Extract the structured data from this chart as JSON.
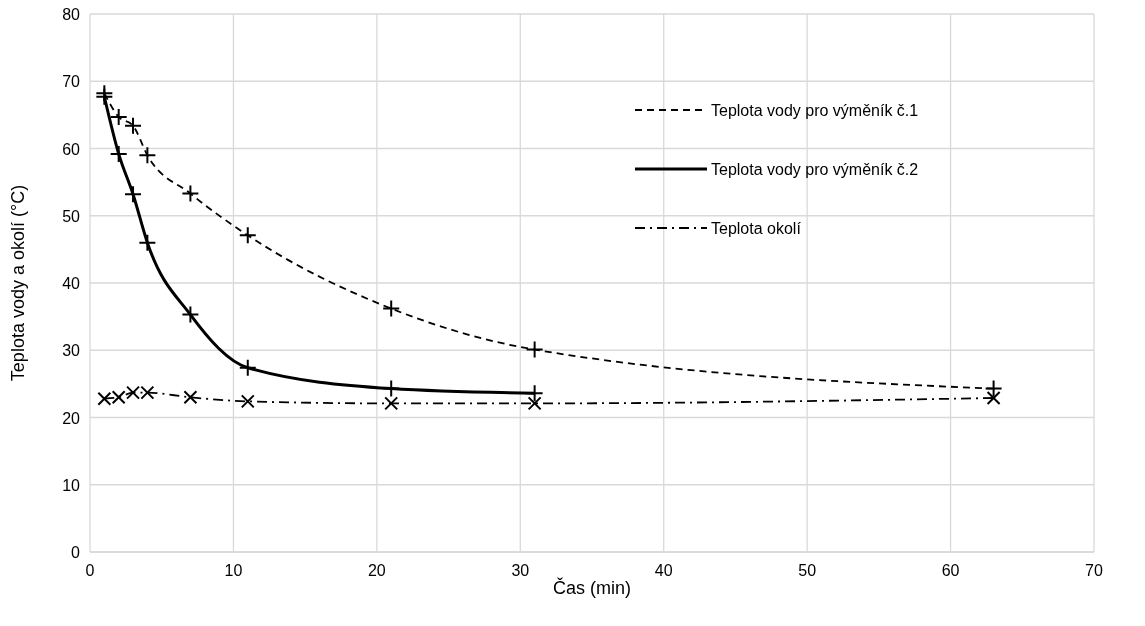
{
  "chart_data": {
    "type": "line",
    "xlabel": "Čas (min)",
    "ylabel": "Teplota vody a okolí (°C)",
    "xlim": [
      0,
      70
    ],
    "xticks": [
      0,
      10,
      20,
      30,
      40,
      50,
      60,
      70
    ],
    "ylim": [
      0,
      80
    ],
    "yticks": [
      0,
      10,
      20,
      30,
      40,
      50,
      60,
      70,
      80
    ],
    "grid": true,
    "legend": "right",
    "series": [
      {
        "name": "Teplota vody pro výměník č.1",
        "color": "#000000",
        "line_style": "dashed",
        "marker": "cross",
        "x": [
          1,
          2,
          3,
          4,
          7,
          11,
          21,
          31,
          63
        ],
        "values": [
          68.2,
          64.7,
          63.4,
          59.0,
          53.3,
          47.1,
          36.2,
          30.1,
          24.3
        ]
      },
      {
        "name": "Teplota vody pro výměník č.2",
        "color": "#000000",
        "line_style": "solid",
        "marker": "cross",
        "x": [
          1,
          2,
          3,
          4,
          7,
          11,
          21,
          31
        ],
        "values": [
          67.7,
          59.2,
          53.2,
          46.0,
          35.3,
          27.4,
          24.3,
          23.6
        ]
      },
      {
        "name": "Teplota okolí",
        "color": "#000000",
        "line_style": "dashdot",
        "marker": "x",
        "x": [
          1,
          2,
          3,
          4,
          7,
          11,
          21,
          31,
          63
        ],
        "values": [
          22.8,
          23.0,
          23.7,
          23.7,
          23.0,
          22.4,
          22.1,
          22.1,
          22.9
        ]
      }
    ]
  }
}
